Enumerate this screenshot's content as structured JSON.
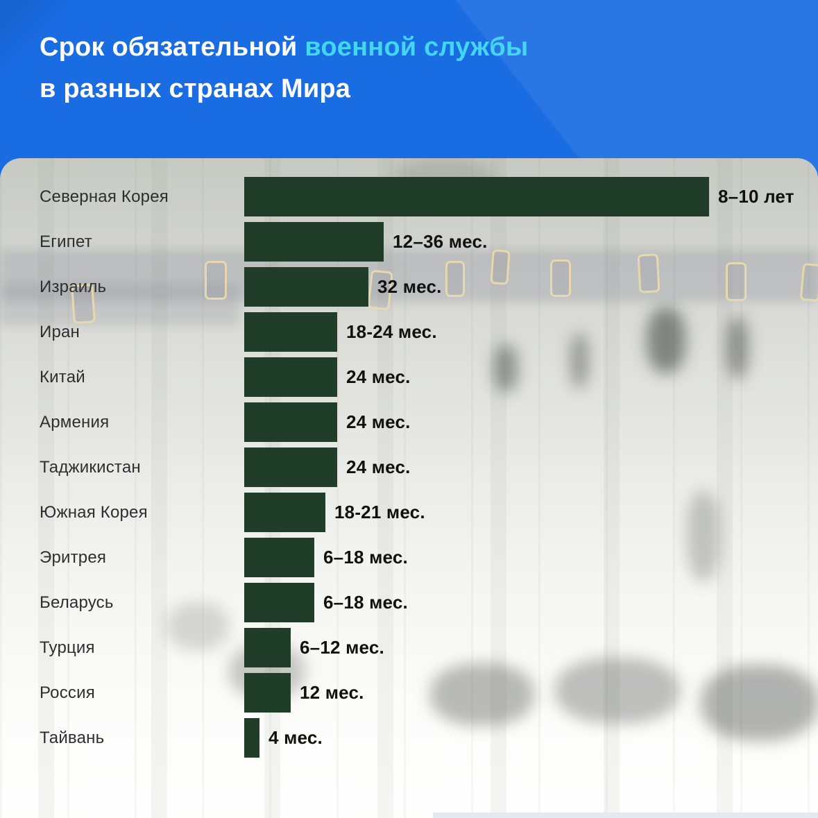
{
  "header": {
    "title_line1_white": "Срок обязательной",
    "title_line1_accent": "военной службы",
    "title_line2": "в разных странах Мира",
    "bg_color": "#1a6ce2",
    "accent_color": "#43d6f1",
    "text_color": "#ffffff"
  },
  "chart_data": {
    "type": "bar",
    "orientation": "horizontal",
    "title": "Срок обязательной военной службы в разных странах Мира",
    "unit": "месяцы",
    "axis_max_months": 120,
    "bar_color": "#1f3d28",
    "country_label_color": "#2e2e30",
    "value_label_color": "#101010",
    "rows": [
      {
        "country": "Северная Корея",
        "value_label": "8–10 лет",
        "months_min": 96,
        "months_max": 120
      },
      {
        "country": "Египет",
        "value_label": "12–36 мес.",
        "months_min": 12,
        "months_max": 36
      },
      {
        "country": "Израиль",
        "value_label": "32 мес.",
        "months_min": 32,
        "months_max": 32
      },
      {
        "country": "Иран",
        "value_label": "18-24 мес.",
        "months_min": 18,
        "months_max": 24
      },
      {
        "country": "Китай",
        "value_label": "24 мес.",
        "months_min": 24,
        "months_max": 24
      },
      {
        "country": "Армения",
        "value_label": "24 мес.",
        "months_min": 24,
        "months_max": 24
      },
      {
        "country": "Таджикистан",
        "value_label": "24 мес.",
        "months_min": 24,
        "months_max": 24
      },
      {
        "country": "Южная Корея",
        "value_label": "18-21 мес.",
        "months_min": 18,
        "months_max": 21
      },
      {
        "country": "Эритрея",
        "value_label": "6–18 мес.",
        "months_min": 6,
        "months_max": 18
      },
      {
        "country": "Беларусь",
        "value_label": "6–18 мес.",
        "months_min": 6,
        "months_max": 18
      },
      {
        "country": "Турция",
        "value_label": "6–12 мес.",
        "months_min": 6,
        "months_max": 12
      },
      {
        "country": "Россия",
        "value_label": "12 мес.",
        "months_min": 12,
        "months_max": 12
      },
      {
        "country": "Тайвань",
        "value_label": "4 мес.",
        "months_min": 4,
        "months_max": 4
      }
    ]
  }
}
